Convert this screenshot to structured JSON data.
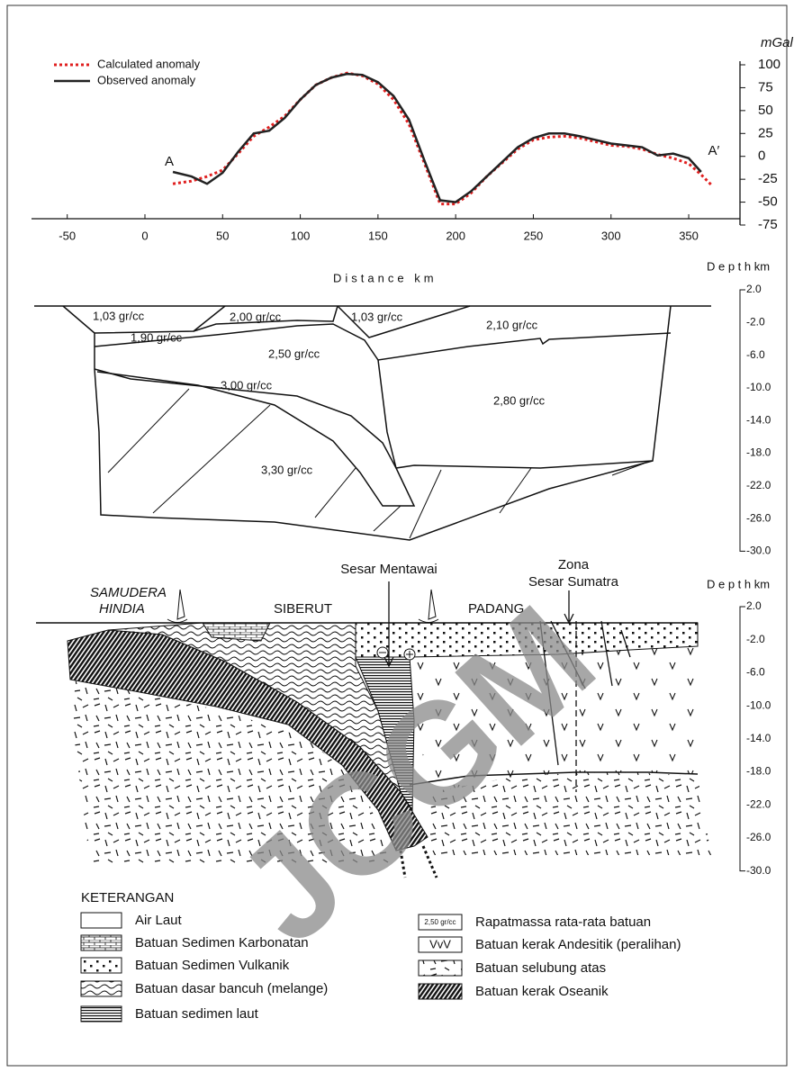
{
  "chart_data": {
    "type": "line",
    "y_unit": "mGal",
    "x_label": "Distance  km",
    "annotations": [
      "A",
      "A′"
    ],
    "legend": "upper left",
    "grid": false,
    "xlim": [
      -73,
      383
    ],
    "ylim": [
      -75,
      100
    ],
    "xticks": [
      -50,
      0,
      50,
      100,
      150,
      200,
      250,
      300,
      350
    ],
    "yticks": [
      -75,
      -50,
      -25,
      0,
      25,
      50,
      75,
      100
    ],
    "x": [
      18,
      30,
      40,
      50,
      60,
      70,
      80,
      90,
      100,
      110,
      120,
      130,
      140,
      150,
      160,
      170,
      180,
      190,
      200,
      210,
      220,
      230,
      240,
      250,
      260,
      270,
      280,
      290,
      300,
      310,
      320,
      330,
      340,
      350,
      358,
      365
    ],
    "series": [
      {
        "name": "Calculated anomaly",
        "color": "#e02020",
        "style": "dotted",
        "values": [
          -30,
          -27,
          -22,
          -15,
          3,
          22,
          32,
          44,
          62,
          78,
          86,
          91,
          88,
          79,
          62,
          35,
          -8,
          -52,
          -52,
          -40,
          -22,
          -7,
          8,
          18,
          21,
          22,
          20,
          16,
          12,
          11,
          8,
          2,
          -2,
          -8,
          -20,
          -32
        ]
      },
      {
        "name": "Observed anomaly",
        "color": "#222222",
        "style": "solid",
        "values": [
          -17,
          -22,
          -30,
          -18,
          5,
          25,
          28,
          42,
          62,
          78,
          86,
          90,
          89,
          81,
          66,
          40,
          -5,
          -48,
          -50,
          -38,
          -22,
          -6,
          10,
          20,
          25,
          25,
          22,
          18,
          14,
          12,
          10,
          1,
          3,
          -2,
          -17,
          null
        ]
      }
    ]
  },
  "density_model": {
    "depth_title": "D e p t h  km",
    "depth_labels": [
      "2.0",
      "-2.0",
      "-6.0",
      "-10.0",
      "-14.0",
      "-18.0",
      "-22.0",
      "-26.0",
      "-30.0"
    ],
    "labels": [
      "1,03 gr/cc",
      "2,00 gr/cc",
      "1,03 gr/cc",
      "2,10 gr/cc",
      "1,90 gr/cc",
      "2,50 gr/cc",
      "3,00 gr/cc",
      "2,80 gr/cc",
      "3,30 gr/cc"
    ]
  },
  "geology": {
    "depth_title": "D e p t h  km",
    "depth_labels": [
      "2.0",
      "-2.0",
      "-6.0",
      "-10.0",
      "-14.0",
      "-18.0",
      "-22.0",
      "-26.0",
      "-30.0"
    ],
    "labels": [
      "SAMUDERA",
      "HINDIA",
      "SIBERUT",
      "Sesar Mentawai",
      "PADANG",
      "Zona",
      "Sesar Sumatra"
    ]
  },
  "legend": {
    "title": "KETERANGAN",
    "items": [
      "Air Laut",
      "Batuan Sedimen Karbonatan",
      "Batuan Sedimen Vulkanik",
      "Batuan dasar bancuh (melange)",
      "Batuan sedimen laut",
      "Rapatmassa rata-rata batuan",
      "Batuan kerak Andesitik (peralihan)",
      "Batuan selubung atas",
      "Batuan kerak Oseanik"
    ],
    "density_icon": "2,50 gr/cc",
    "andesite_icon": "VvV"
  },
  "watermark": "JCGM"
}
